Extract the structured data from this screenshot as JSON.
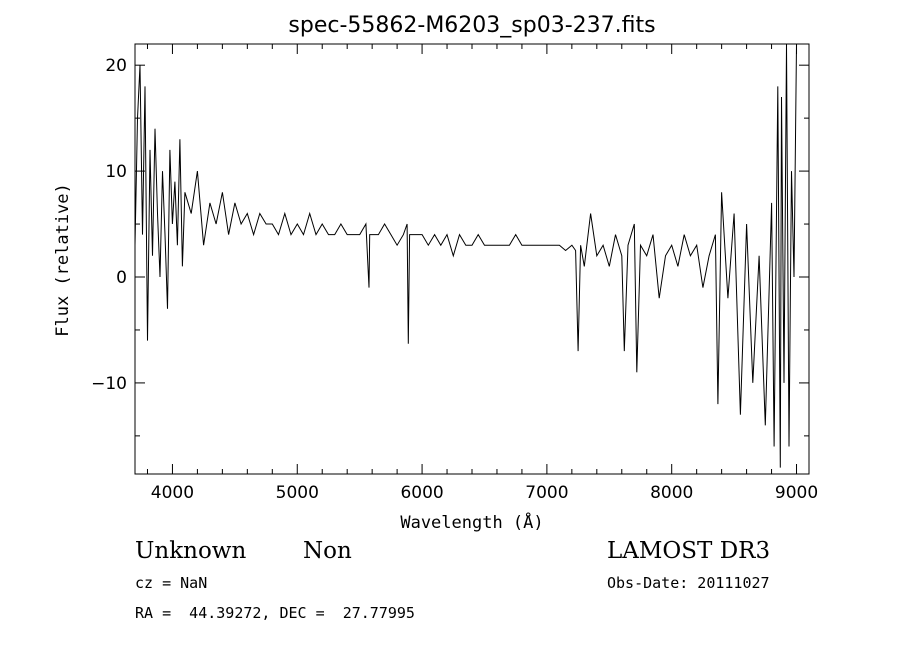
{
  "chart_data": {
    "type": "line",
    "title": "spec-55862-M6203_sp03-237.fits",
    "xlabel": "Wavelength (Å)",
    "ylabel": "Flux (relative)",
    "xlim": [
      3700,
      9100
    ],
    "ylim": [
      -18.6,
      22
    ],
    "xticks": [
      4000,
      5000,
      6000,
      7000,
      8000,
      9000
    ],
    "yticks": [
      -10,
      0,
      10,
      20
    ],
    "grid": false,
    "series": [
      {
        "name": "flux",
        "x": [
          3700,
          3720,
          3740,
          3760,
          3780,
          3800,
          3820,
          3840,
          3860,
          3880,
          3900,
          3920,
          3940,
          3960,
          3980,
          4000,
          4020,
          4040,
          4060,
          4080,
          4100,
          4150,
          4200,
          4250,
          4300,
          4350,
          4400,
          4450,
          4500,
          4550,
          4600,
          4650,
          4700,
          4750,
          4800,
          4850,
          4900,
          4950,
          5000,
          5050,
          5100,
          5150,
          5200,
          5250,
          5300,
          5350,
          5400,
          5450,
          5500,
          5550,
          5575,
          5580,
          5600,
          5650,
          5700,
          5750,
          5800,
          5850,
          5880,
          5890,
          5900,
          5950,
          6000,
          6050,
          6100,
          6150,
          6200,
          6250,
          6300,
          6350,
          6400,
          6450,
          6500,
          6550,
          6600,
          6650,
          6700,
          6750,
          6800,
          6850,
          6900,
          6950,
          7000,
          7050,
          7100,
          7150,
          7200,
          7230,
          7250,
          7270,
          7300,
          7350,
          7400,
          7450,
          7500,
          7550,
          7600,
          7620,
          7650,
          7700,
          7720,
          7750,
          7800,
          7850,
          7900,
          7950,
          8000,
          8050,
          8100,
          8150,
          8200,
          8250,
          8300,
          8350,
          8370,
          8400,
          8450,
          8500,
          8550,
          8600,
          8650,
          8700,
          8750,
          8800,
          8820,
          8850,
          8870,
          8880,
          8900,
          8920,
          8940,
          8960,
          8980,
          9000
        ],
        "values": [
          3,
          15,
          20,
          4,
          18,
          -6,
          12,
          2,
          14,
          6,
          0,
          10,
          4,
          -3,
          12,
          5,
          9,
          3,
          13,
          1,
          8,
          6,
          10,
          3,
          7,
          5,
          8,
          4,
          7,
          5,
          6,
          4,
          6,
          5,
          5,
          4,
          6,
          4,
          5,
          4,
          6,
          4,
          5,
          4,
          4,
          5,
          4,
          4,
          4,
          5,
          -1,
          4,
          4,
          4,
          5,
          4,
          3,
          4,
          5,
          -6.3,
          4,
          4,
          4,
          3,
          4,
          3,
          4,
          2,
          4,
          3,
          3,
          4,
          3,
          3,
          3,
          3,
          3,
          4,
          3,
          3,
          3,
          3,
          3,
          3,
          3,
          2.5,
          3,
          2.5,
          -7,
          3,
          1,
          6,
          2,
          3,
          1,
          4,
          2,
          -7,
          3,
          5,
          -9,
          3,
          2,
          4,
          -2,
          2,
          3,
          1,
          4,
          2,
          3,
          -1,
          2,
          4,
          -12,
          8,
          -2,
          6,
          -13,
          5,
          -10,
          2,
          -14,
          7,
          -16,
          18,
          -18,
          17,
          -10,
          22,
          -16,
          10,
          0,
          22
        ]
      }
    ]
  },
  "footer": {
    "object_class": "Unknown",
    "subclass": "Non",
    "survey": "LAMOST DR3",
    "cz": "cz = NaN",
    "obs_date": "Obs-Date: 20111027",
    "coords": "RA =  44.39272, DEC =  27.77995"
  }
}
